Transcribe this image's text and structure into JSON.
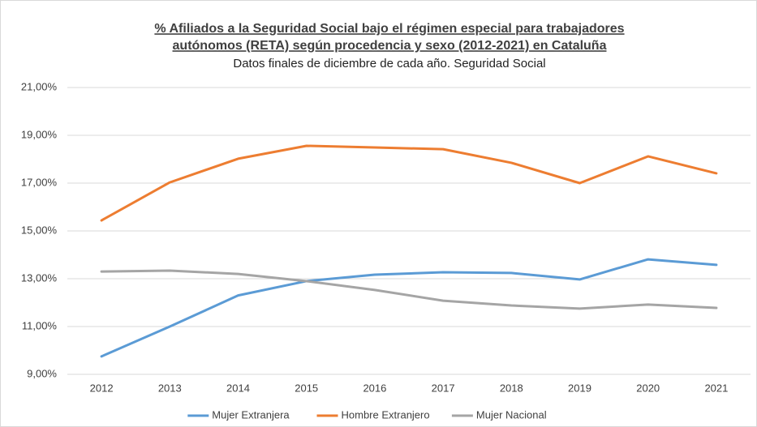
{
  "chart_data": {
    "type": "line",
    "title": [
      "% Afiliados a la Seguridad Social bajo el régimen especial para trabajadores",
      "autónomos (RETA) según procedencia y sexo (2012-2021) en Cataluña"
    ],
    "subtitle": "Datos finales de diciembre de cada año. Seguridad Social",
    "categories": [
      "2012",
      "2013",
      "2014",
      "2015",
      "2016",
      "2017",
      "2018",
      "2019",
      "2020",
      "2021"
    ],
    "series": [
      {
        "name": "Mujer Extranjera",
        "color": "#5b9bd5",
        "values": [
          9.75,
          11.0,
          12.3,
          12.9,
          13.17,
          13.27,
          13.24,
          12.97,
          13.81,
          13.58
        ]
      },
      {
        "name": "Hombre Extranjero",
        "color": "#ed7d31",
        "values": [
          15.44,
          17.03,
          18.02,
          18.56,
          18.49,
          18.42,
          17.85,
          17.0,
          18.12,
          17.41
        ]
      },
      {
        "name": "Mujer Nacional",
        "color": "#a5a5a5",
        "values": [
          13.3,
          13.34,
          13.2,
          12.9,
          12.53,
          12.08,
          11.88,
          11.75,
          11.92,
          11.78
        ]
      }
    ],
    "ylim": [
      9,
      21
    ],
    "yticks": [
      {
        "value": 9,
        "label": "9,00%"
      },
      {
        "value": 11,
        "label": "11,00%"
      },
      {
        "value": 13,
        "label": "13,00%"
      },
      {
        "value": 15,
        "label": "15,00%"
      },
      {
        "value": 17,
        "label": "17,00%"
      },
      {
        "value": 19,
        "label": "19,00%"
      },
      {
        "value": 21,
        "label": "21,00%"
      }
    ],
    "grid": true,
    "legend": "bottom"
  }
}
